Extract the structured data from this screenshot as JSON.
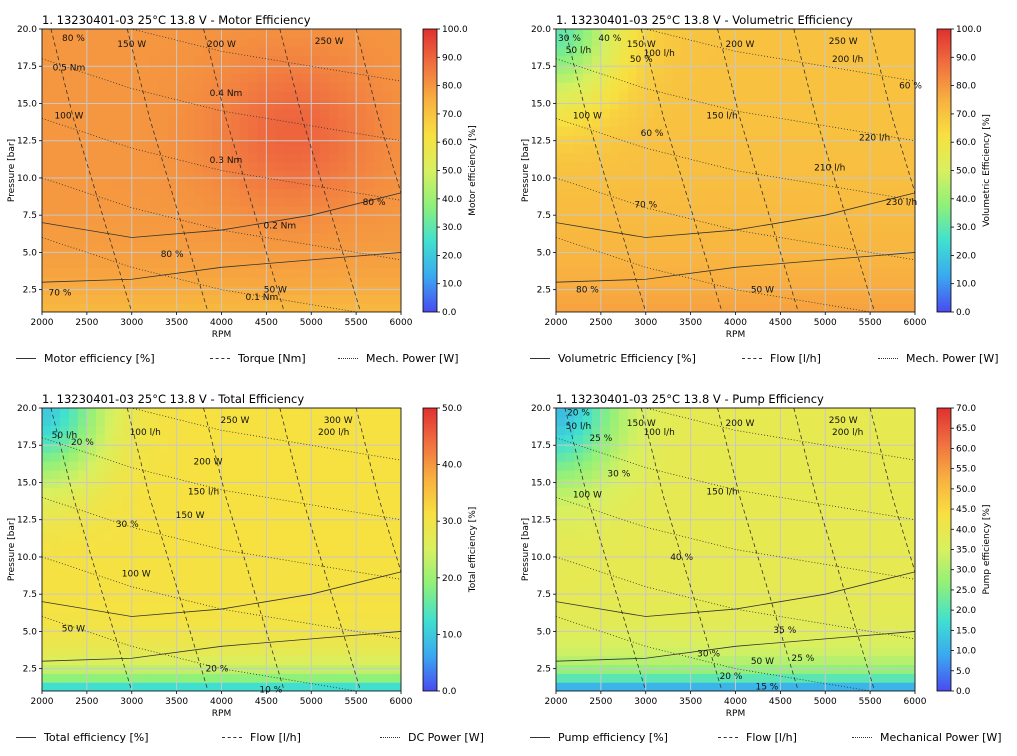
{
  "colormap": [
    "#4a4af0",
    "#3aa8f0",
    "#40e0d0",
    "#8ef07a",
    "#d8f060",
    "#f8e040",
    "#f8b040",
    "#f07040",
    "#e03030"
  ],
  "chart_data": [
    {
      "type": "heatmap",
      "title": "1. 13230401-03 25°C 13.8 V - Motor Efficiency",
      "xlabel": "RPM",
      "ylabel": "Pressure [bar]",
      "xlim": [
        2000,
        6000
      ],
      "ylim": [
        1,
        20
      ],
      "x_ticks": [
        "2000",
        "2500",
        "3000",
        "3500",
        "4000",
        "4500",
        "5000",
        "5500",
        "6000"
      ],
      "y_ticks": [
        "2.5",
        "5.0",
        "7.5",
        "10.0",
        "12.5",
        "15.0",
        "17.5",
        "20.0"
      ],
      "colorbar": {
        "label": "Motor efficiency [%]",
        "range": [
          0,
          100
        ],
        "ticks": [
          "0.0",
          "10.0",
          "20.0",
          "30.0",
          "40.0",
          "50.0",
          "60.0",
          "70.0",
          "80.0",
          "90.0",
          "100.0"
        ]
      },
      "field": {
        "base": 80,
        "peak": {
          "x": 4800,
          "y": 13,
          "v": 10
        },
        "low_y_drop": 8
      },
      "contour_labels": [
        {
          "text": "80 %",
          "x": 2350,
          "y": 19.2
        },
        {
          "text": "150 W",
          "x": 3000,
          "y": 18.8
        },
        {
          "text": "200 W",
          "x": 4000,
          "y": 18.8
        },
        {
          "text": "250 W",
          "x": 5200,
          "y": 19.0
        },
        {
          "text": "0.5 Nm",
          "x": 2300,
          "y": 17.2
        },
        {
          "text": "0.4 Nm",
          "x": 4050,
          "y": 15.5
        },
        {
          "text": "100 W",
          "x": 2300,
          "y": 14.0
        },
        {
          "text": "0.3 Nm",
          "x": 4050,
          "y": 11.0
        },
        {
          "text": "80 %",
          "x": 5700,
          "y": 8.2
        },
        {
          "text": "0.2 Nm",
          "x": 4650,
          "y": 6.6
        },
        {
          "text": "80 %",
          "x": 3450,
          "y": 4.7
        },
        {
          "text": "50 W",
          "x": 4600,
          "y": 2.3
        },
        {
          "text": "0.1 Nm",
          "x": 4450,
          "y": 1.8
        },
        {
          "text": "70 %",
          "x": 2200,
          "y": 2.1
        }
      ],
      "legend": [
        "Motor efficiency [%]",
        "Torque [Nm]",
        "Mech. Power [W]"
      ]
    },
    {
      "type": "heatmap",
      "title": "1. 13230401-03 25°C 13.8 V - Volumetric Efficiency",
      "xlabel": "RPM",
      "ylabel": "Pressure [bar]",
      "xlim": [
        2000,
        6000
      ],
      "ylim": [
        1,
        20
      ],
      "x_ticks": [
        "2000",
        "2500",
        "3000",
        "3500",
        "4000",
        "4500",
        "5000",
        "5500",
        "6000"
      ],
      "y_ticks": [
        "2.5",
        "5.0",
        "7.5",
        "10.0",
        "12.5",
        "15.0",
        "17.5",
        "20.0"
      ],
      "colorbar": {
        "label": "Volumetric Efficiency [%]",
        "range": [
          0,
          100
        ],
        "ticks": [
          "0.0",
          "10.0",
          "20.0",
          "30.0",
          "40.0",
          "50.0",
          "60.0",
          "70.0",
          "80.0",
          "90.0",
          "100.0"
        ]
      },
      "field": {
        "base": 70,
        "corner_low": {
          "x": 2000,
          "y": 20,
          "v": 30
        },
        "low_y_rise": 8
      },
      "contour_labels": [
        {
          "text": "30 %",
          "x": 2150,
          "y": 19.2
        },
        {
          "text": "40 %",
          "x": 2600,
          "y": 19.2
        },
        {
          "text": "50 l/h",
          "x": 2250,
          "y": 18.4
        },
        {
          "text": "150 W",
          "x": 2950,
          "y": 18.8
        },
        {
          "text": "50 %",
          "x": 2950,
          "y": 17.8
        },
        {
          "text": "100 l/h",
          "x": 3150,
          "y": 18.2
        },
        {
          "text": "200 W",
          "x": 4050,
          "y": 18.8
        },
        {
          "text": "250 W",
          "x": 5200,
          "y": 19.0
        },
        {
          "text": "200 l/h",
          "x": 5250,
          "y": 17.8
        },
        {
          "text": "60 %",
          "x": 5950,
          "y": 16.0
        },
        {
          "text": "100 W",
          "x": 2350,
          "y": 14.0
        },
        {
          "text": "150 l/h",
          "x": 3850,
          "y": 14.0
        },
        {
          "text": "60 %",
          "x": 3070,
          "y": 12.8
        },
        {
          "text": "210 l/h",
          "x": 5050,
          "y": 10.5
        },
        {
          "text": "220 l/h",
          "x": 5550,
          "y": 12.5
        },
        {
          "text": "70 %",
          "x": 3000,
          "y": 8.0
        },
        {
          "text": "230 l/h",
          "x": 5850,
          "y": 8.2
        },
        {
          "text": "80 %",
          "x": 2350,
          "y": 2.3
        },
        {
          "text": "50 W",
          "x": 4300,
          "y": 2.3
        }
      ],
      "legend": [
        "Volumetric Efficiency [%]",
        "Flow [l/h]",
        "Mech. Power [W]"
      ]
    },
    {
      "type": "heatmap",
      "title": "1. 13230401-03 25°C 13.8 V - Total Efficiency",
      "xlabel": "RPM",
      "ylabel": "Pressure [bar]",
      "xlim": [
        2000,
        6000
      ],
      "ylim": [
        1,
        20
      ],
      "x_ticks": [
        "2000",
        "2500",
        "3000",
        "3500",
        "4000",
        "4500",
        "5000",
        "5500",
        "6000"
      ],
      "y_ticks": [
        "2.5",
        "5.0",
        "7.5",
        "10.0",
        "12.5",
        "15.0",
        "17.5",
        "20.0"
      ],
      "colorbar": {
        "label": "Total efficiency [%]",
        "range": [
          0,
          50
        ],
        "ticks": [
          "0.0",
          "10.0",
          "20.0",
          "30.0",
          "40.0",
          "50.0"
        ]
      },
      "field": {
        "base": 31,
        "corner_low": {
          "x": 2000,
          "y": 20,
          "v": 10
        },
        "bottom_low": 8
      },
      "contour_labels": [
        {
          "text": "50 l/h",
          "x": 2250,
          "y": 18.0
        },
        {
          "text": "20 %",
          "x": 2450,
          "y": 17.5
        },
        {
          "text": "100 l/h",
          "x": 3150,
          "y": 18.2
        },
        {
          "text": "250 W",
          "x": 4150,
          "y": 19.0
        },
        {
          "text": "300 W",
          "x": 5300,
          "y": 19.0
        },
        {
          "text": "200 l/h",
          "x": 5250,
          "y": 18.2
        },
        {
          "text": "200 W",
          "x": 3850,
          "y": 16.2
        },
        {
          "text": "150 l/h",
          "x": 3800,
          "y": 14.2
        },
        {
          "text": "150 W",
          "x": 3650,
          "y": 12.6
        },
        {
          "text": "30 %",
          "x": 2950,
          "y": 12.0
        },
        {
          "text": "100 W",
          "x": 3050,
          "y": 8.7
        },
        {
          "text": "50 W",
          "x": 2350,
          "y": 5.0
        },
        {
          "text": "20 %",
          "x": 3950,
          "y": 2.3
        },
        {
          "text": "10 %",
          "x": 4550,
          "y": 0.9
        }
      ],
      "legend": [
        "Total efficiency [%]",
        "Flow [l/h]",
        "DC Power [W]"
      ]
    },
    {
      "type": "heatmap",
      "title": "1. 13230401-03 25°C 13.8 V - Pump Efficiency",
      "xlabel": "RPM",
      "ylabel": "Pressure [bar]",
      "xlim": [
        2000,
        6000
      ],
      "ylim": [
        1,
        20
      ],
      "x_ticks": [
        "2000",
        "2500",
        "3000",
        "3500",
        "4000",
        "4500",
        "5000",
        "5500",
        "6000"
      ],
      "y_ticks": [
        "2.5",
        "5.0",
        "7.5",
        "10.0",
        "12.5",
        "15.0",
        "17.5",
        "20.0"
      ],
      "colorbar": {
        "label": "Pump efficiency [%]",
        "range": [
          0,
          70
        ],
        "ticks": [
          "0.0",
          "5.0",
          "10.0",
          "15.0",
          "20.0",
          "25.0",
          "30.0",
          "35.0",
          "40.0",
          "45.0",
          "50.0",
          "55.0",
          "60.0",
          "65.0",
          "70.0"
        ]
      },
      "field": {
        "base": 39,
        "corner_low": {
          "x": 2000,
          "y": 20,
          "v": 12
        },
        "bottom_low": 4
      },
      "contour_labels": [
        {
          "text": "20 %",
          "x": 2250,
          "y": 19.5
        },
        {
          "text": "50 l/h",
          "x": 2250,
          "y": 18.6
        },
        {
          "text": "25 %",
          "x": 2500,
          "y": 17.8
        },
        {
          "text": "150 W",
          "x": 2950,
          "y": 18.8
        },
        {
          "text": "100 l/h",
          "x": 3150,
          "y": 18.2
        },
        {
          "text": "200 W",
          "x": 4050,
          "y": 18.8
        },
        {
          "text": "250 W",
          "x": 5200,
          "y": 19.0
        },
        {
          "text": "200 l/h",
          "x": 5250,
          "y": 18.2
        },
        {
          "text": "30 %",
          "x": 2700,
          "y": 15.4
        },
        {
          "text": "100 W",
          "x": 2350,
          "y": 14.0
        },
        {
          "text": "150 l/h",
          "x": 3850,
          "y": 14.2
        },
        {
          "text": "40 %",
          "x": 3400,
          "y": 9.8
        },
        {
          "text": "35 %",
          "x": 4550,
          "y": 4.9
        },
        {
          "text": "30 %",
          "x": 3700,
          "y": 3.3
        },
        {
          "text": "50 W",
          "x": 4300,
          "y": 2.8
        },
        {
          "text": "25 %",
          "x": 4750,
          "y": 3.0
        },
        {
          "text": "20 %",
          "x": 3950,
          "y": 1.8
        },
        {
          "text": "15 %",
          "x": 4350,
          "y": 1.1
        }
      ],
      "legend": [
        "Pump efficiency [%]",
        "Flow [l/h]",
        "Mechanical Power [W]"
      ]
    }
  ]
}
